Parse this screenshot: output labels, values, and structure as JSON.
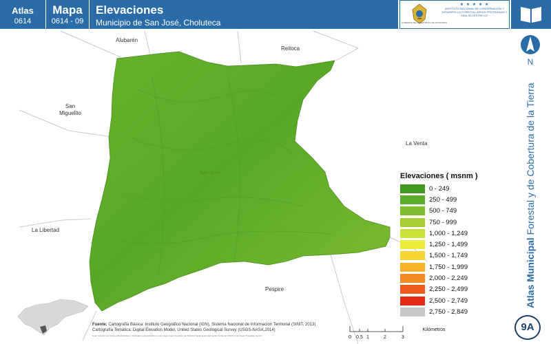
{
  "header": {
    "atlas_label": "Atlas",
    "atlas_code": "0614",
    "map_label": "Mapa",
    "map_code": "0614 - 09",
    "title": "Elevaciones",
    "subtitle": "Municipio de San José, Choluteca",
    "logo_left_text": "GOBIERNO DE LA REPÚBLICA DE HONDURAS",
    "logo_right_stars": "★ ★ ★ ★ ★",
    "logo_right_text": "INSTITUTO NACIONAL DE CONSERVACIÓN Y DESARROLLO FORESTAL ÁREAS PROTEGIDAS Y VIDA SILVESTRE ICF",
    "book_icon": "book-icon"
  },
  "map": {
    "municipality_label": "San José",
    "places": {
      "alubaren": "Alubarén",
      "reitoca": "Reitoca",
      "san_miguelito": "San Miguelito",
      "la_venta": "La Venta",
      "la_libertad": "La Libertad",
      "pespire": "Pespire"
    }
  },
  "north": {
    "letter": "N"
  },
  "side_title": {
    "bold": "Atlas Municipal",
    "rest": " Forestal y de Cobertura de la Tierra"
  },
  "badge": "9A",
  "legend": {
    "title": "Elevaciones ( msnm )",
    "items": [
      {
        "label": "0 - 249",
        "color": "#3f9a1f"
      },
      {
        "label": "250 - 499",
        "color": "#5aac28"
      },
      {
        "label": "500 - 749",
        "color": "#7dbd2e"
      },
      {
        "label": "750 - 999",
        "color": "#a6cf34"
      },
      {
        "label": "1,000 - 1,249",
        "color": "#cce03a"
      },
      {
        "label": "1,250 - 1,499",
        "color": "#ecec3a"
      },
      {
        "label": "1,500 - 1,749",
        "color": "#f5d633"
      },
      {
        "label": "1,750 - 1,999",
        "color": "#f7b22b"
      },
      {
        "label": "2,000 - 2,249",
        "color": "#f18a22"
      },
      {
        "label": "2,250 - 2,499",
        "color": "#ec5b1b"
      },
      {
        "label": "2,500 - 2,749",
        "color": "#e32e16"
      },
      {
        "label": "2,750 - 2,849",
        "color": "#c8c8c8"
      }
    ]
  },
  "footer": {
    "source_label": "Fuente:",
    "source_line1": "Cartografía Básica: Instituto Geográfico Nacional (IGN), Sistema Nacional de Información Territorial (SINIT, 2013)",
    "source_line2": "Cartografía Temática: Digital Elevation Model, United States Geological Survey (USGS-NASA,2014)",
    "note": "Nota Técnica: Los límites administrativos y forestales representados en este mapa, fueron tomados del Sistema Nacional de Información Territorial (SINIT) y las Áreas Protegidas de ICF.",
    "scale_ticks": [
      "0",
      "0.5",
      "1",
      "2",
      "3"
    ],
    "scale_unit": "Kilómetros"
  }
}
